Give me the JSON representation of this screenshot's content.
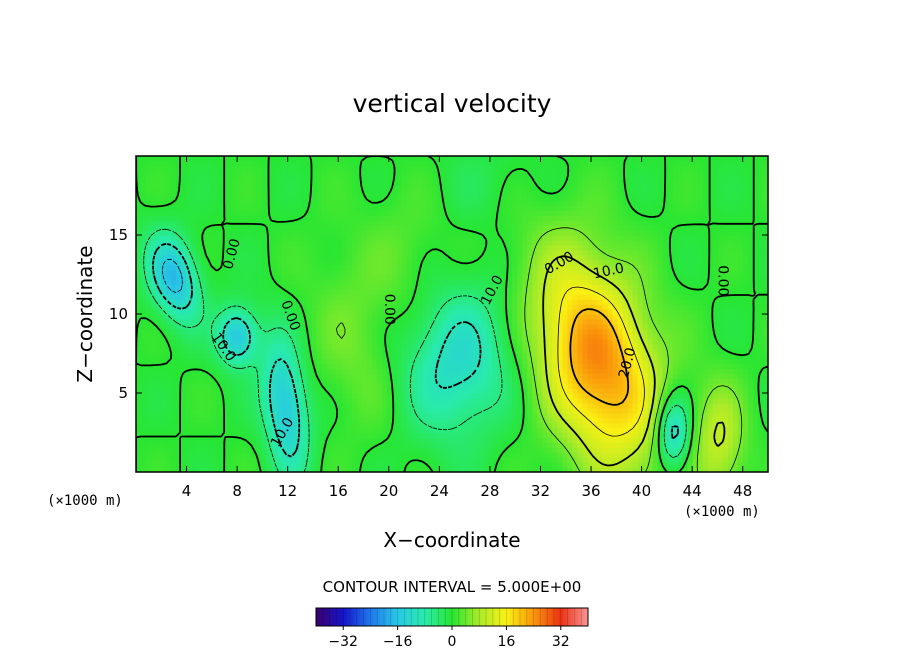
{
  "chart_data": {
    "type": "heatmap",
    "title": "vertical velocity",
    "xlabel": "X−coordinate",
    "ylabel": "Z−coordinate",
    "x_unit": "(×1000 m)",
    "xlim": [
      0,
      50
    ],
    "ylim": [
      0,
      20
    ],
    "x_ticks": [
      4,
      8,
      12,
      16,
      20,
      24,
      28,
      32,
      36,
      40,
      44,
      48
    ],
    "y_ticks": [
      5,
      10,
      15
    ],
    "contour_interval_text": "CONTOUR INTERVAL = 5.000E+00",
    "colorbar": {
      "min": -40,
      "max": 40,
      "ticks": [
        -32,
        -16,
        0,
        16,
        32
      ],
      "tick_labels": [
        "−32",
        "−16",
        "0",
        "16",
        "32"
      ]
    },
    "contour_labels": [
      {
        "text": "0.00",
        "x": 7.6,
        "z": 13.8,
        "angle": -75
      },
      {
        "text": "10.0",
        "x": 6.9,
        "z": 7.9,
        "angle": 55
      },
      {
        "text": "0.00",
        "x": 12.2,
        "z": 9.9,
        "angle": 70
      },
      {
        "text": "10.0",
        "x": 11.6,
        "z": 2.5,
        "angle": -60
      },
      {
        "text": "0.00",
        "x": 20.0,
        "z": 10.3,
        "angle": 90
      },
      {
        "text": "10.0",
        "x": 28.2,
        "z": 11.5,
        "angle": -62
      },
      {
        "text": "0.00",
        "x": 33.5,
        "z": 13.2,
        "angle": -30
      },
      {
        "text": "10.0",
        "x": 37.4,
        "z": 12.7,
        "angle": -12
      },
      {
        "text": "20.0",
        "x": 38.9,
        "z": 6.9,
        "angle": -75
      },
      {
        "text": "0.00",
        "x": 46.4,
        "z": 12.1,
        "angle": 90
      }
    ],
    "field_features": [
      {
        "label": "updraft",
        "x": 36.5,
        "z": 7.0,
        "sx": 3.0,
        "sz": 5.0,
        "amp": 25,
        "rot": 0.45
      },
      {
        "label": "downdraft-left",
        "x": 3.0,
        "z": 12.3,
        "sx": 1.3,
        "sz": 2.0,
        "amp": -17,
        "rot": 0.4
      },
      {
        "label": "downdraft-left-2",
        "x": 8.0,
        "z": 8.6,
        "sx": 1.1,
        "sz": 1.3,
        "amp": -16,
        "rot": 0
      },
      {
        "label": "downdraft-left-3",
        "x": 11.8,
        "z": 4.2,
        "sx": 1.2,
        "sz": 3.0,
        "amp": -16,
        "rot": 0.15
      },
      {
        "label": "downdraft-mid",
        "x": 25.5,
        "z": 7.0,
        "sx": 2.9,
        "sz": 3.4,
        "amp": -12,
        "rot": -0.4
      },
      {
        "label": "downdraft-right",
        "x": 42.5,
        "z": 2.5,
        "sx": 1.0,
        "sz": 1.7,
        "amp": -16,
        "rot": 0
      },
      {
        "label": "updraft-right",
        "x": 46.2,
        "z": 2.0,
        "sx": 1.4,
        "sz": 2.5,
        "amp": 10,
        "rot": 0
      },
      {
        "label": "weak-up-upper",
        "x": 17.2,
        "z": 8.0,
        "sx": 2.2,
        "sz": 4.0,
        "amp": 4,
        "rot": 0.3
      },
      {
        "label": "weak-up-upper-2",
        "x": 21.0,
        "z": 13.5,
        "sx": 2.6,
        "sz": 3.0,
        "amp": 3,
        "rot": 0
      },
      {
        "label": "weak-down-top",
        "x": 28.0,
        "z": 18.5,
        "sx": 3.0,
        "sz": 2.0,
        "amp": -2,
        "rot": 0
      }
    ]
  }
}
